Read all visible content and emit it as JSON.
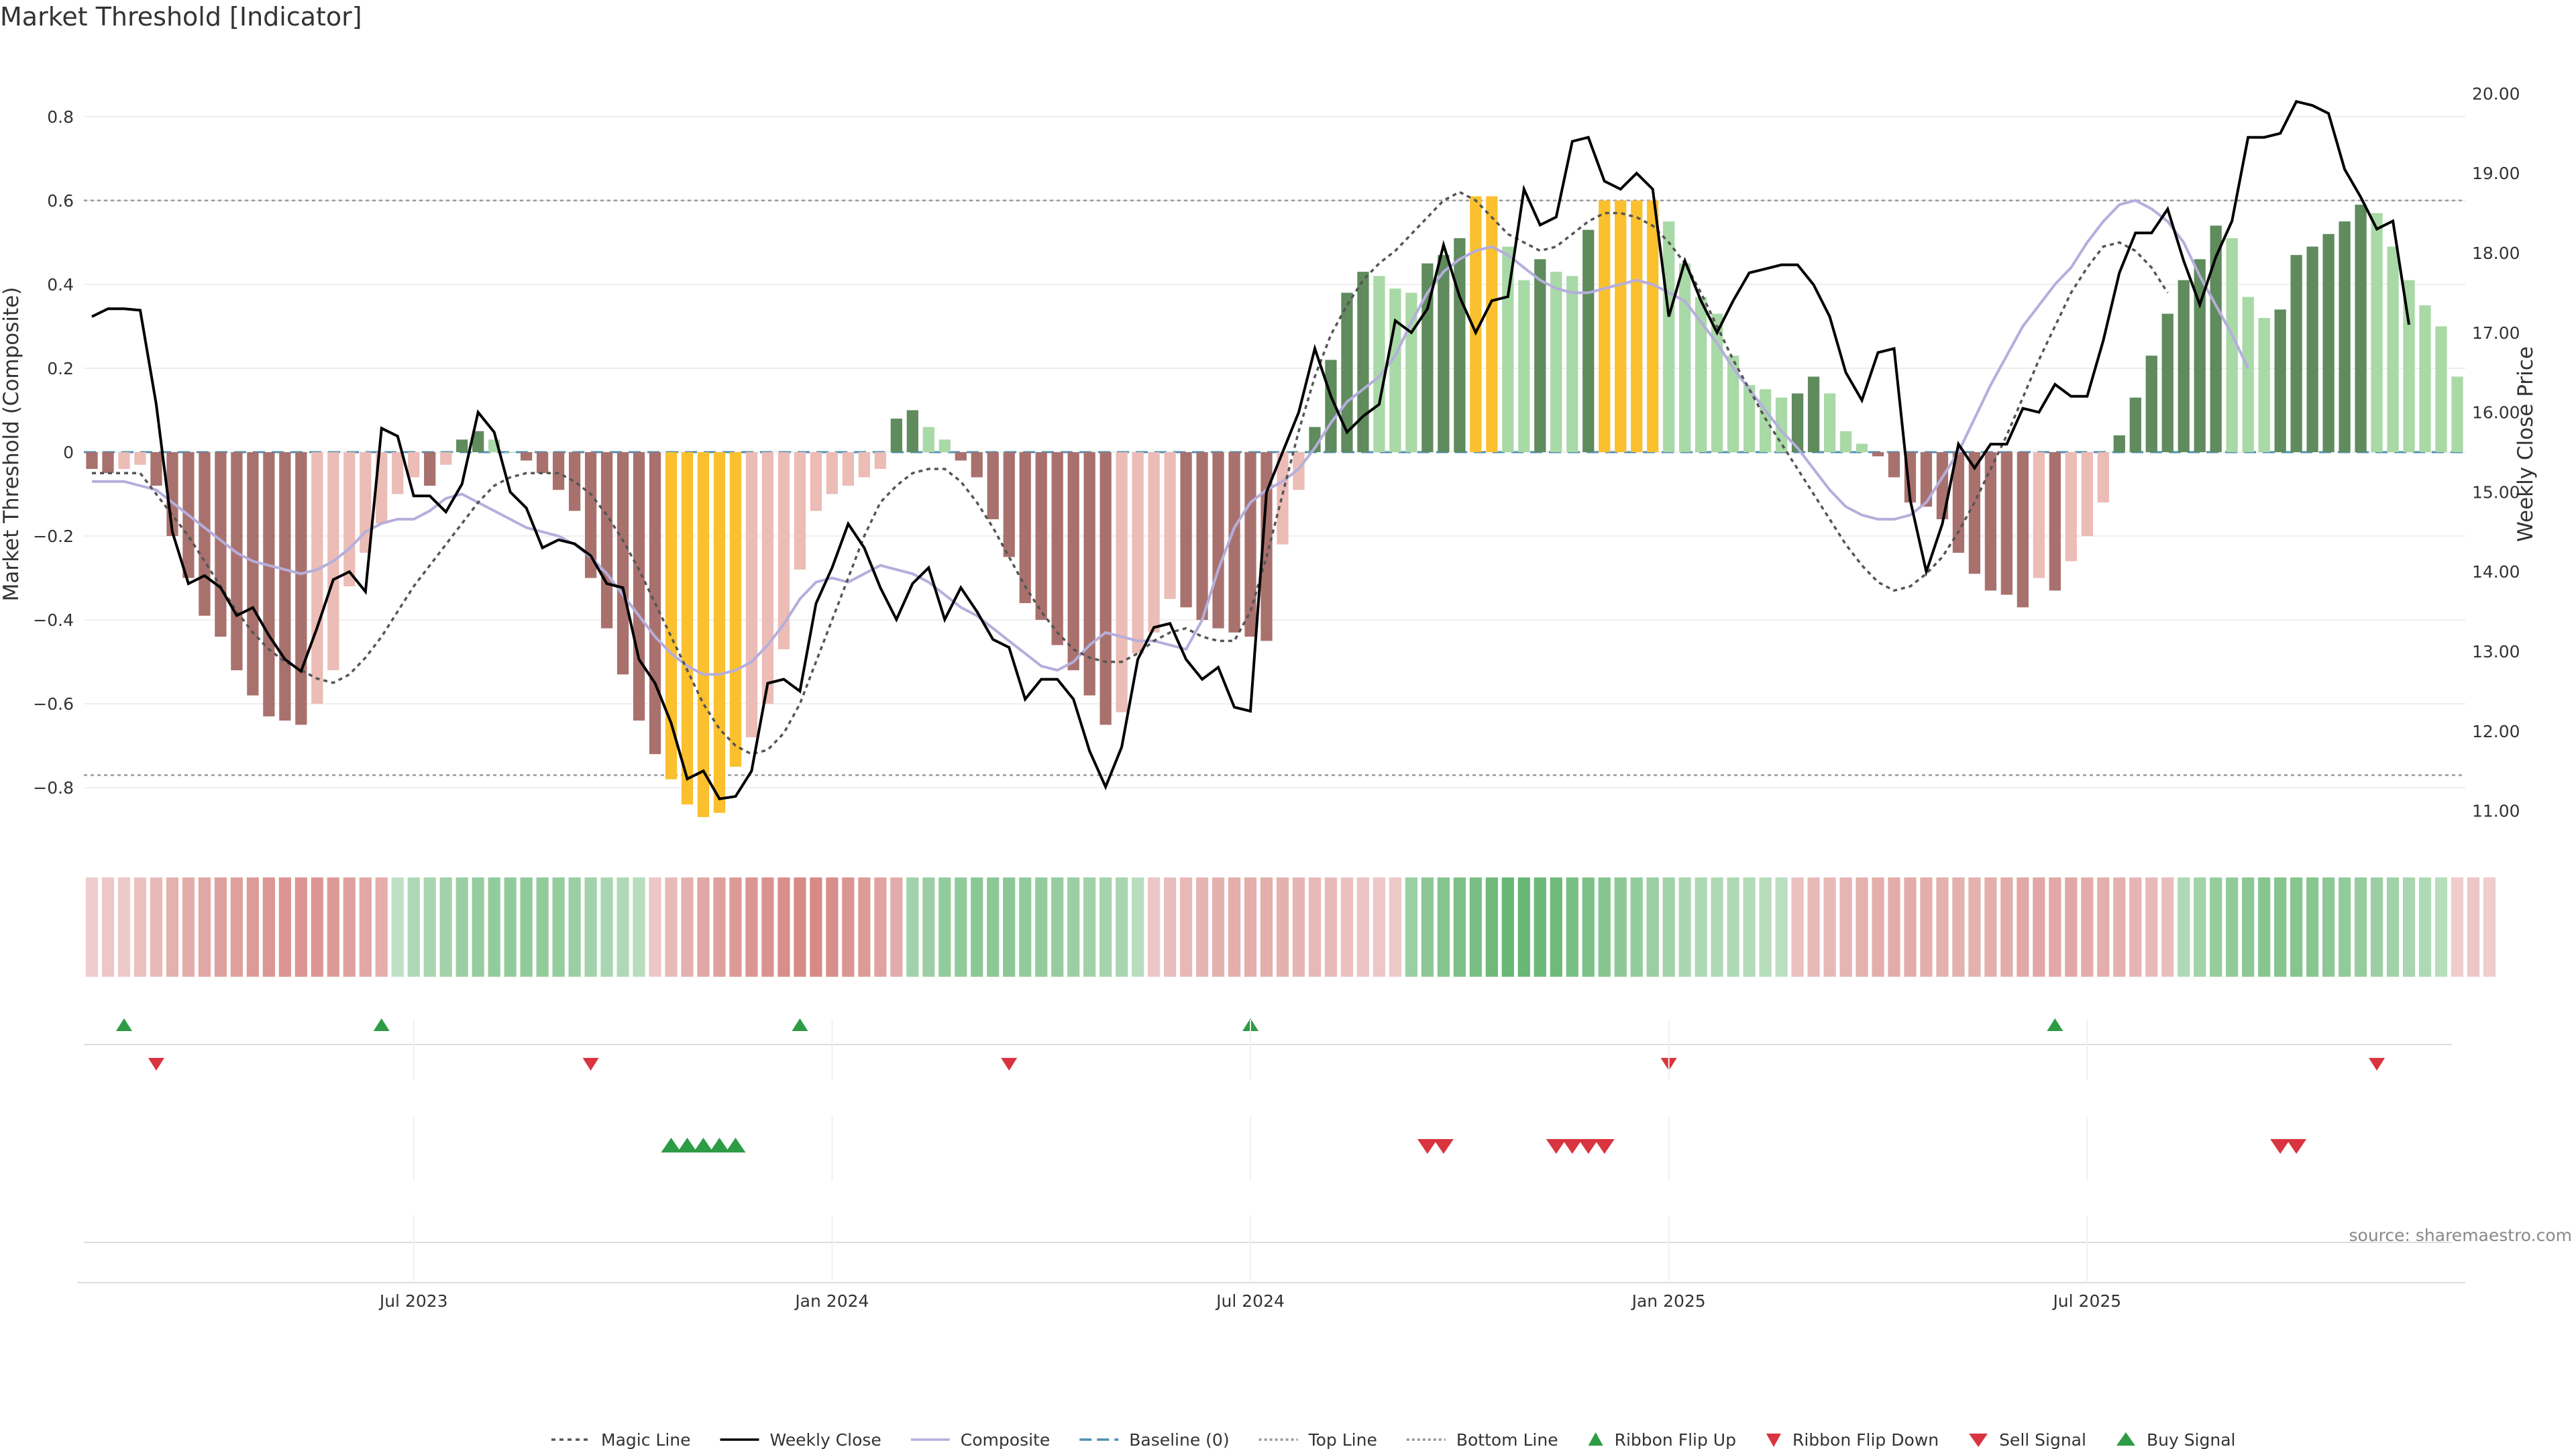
{
  "chart_data": {
    "type": "bar",
    "title": "Market Threshold [Indicator]",
    "ylabel_left": "Market Threshold (Composite)",
    "ylabel_right": "Weekly Close Price",
    "source": "source: sharemaestro.com",
    "ylim_left": [
      -0.95,
      0.95
    ],
    "ylim_right": [
      10.5,
      20.5
    ],
    "yticks_left": [
      -0.8,
      -0.6,
      -0.4,
      -0.2,
      0,
      0.2,
      0.4,
      0.6,
      0.8
    ],
    "yticks_left_labels": [
      "−0.8",
      "−0.6",
      "−0.4",
      "−0.2",
      "0",
      "0.2",
      "0.4",
      "0.6",
      "0.8"
    ],
    "yticks_right": [
      11,
      12,
      13,
      14,
      15,
      16,
      17,
      18,
      19,
      20
    ],
    "yticks_right_labels": [
      "11.00",
      "12.00",
      "13.00",
      "14.00",
      "15.00",
      "16.00",
      "17.00",
      "18.00",
      "19.00",
      "20.00"
    ],
    "xticks": [
      20,
      46,
      72,
      98,
      124
    ],
    "xtick_labels": [
      "Jul 2023",
      "Jan 2024",
      "Jul 2024",
      "Jan 2025",
      "Jul 2025"
    ],
    "top_line": 0.6,
    "bottom_line": -0.77,
    "composite_bars": [
      -0.04,
      -0.05,
      -0.04,
      -0.03,
      -0.08,
      -0.2,
      -0.3,
      -0.39,
      -0.44,
      -0.52,
      -0.58,
      -0.63,
      -0.64,
      -0.65,
      -0.6,
      -0.52,
      -0.32,
      -0.24,
      -0.17,
      -0.1,
      -0.06,
      -0.08,
      -0.03,
      0.03,
      0.05,
      0.03,
      0.0,
      -0.02,
      -0.05,
      -0.09,
      -0.14,
      -0.3,
      -0.42,
      -0.53,
      -0.64,
      -0.72,
      -0.78,
      -0.84,
      -0.87,
      -0.86,
      -0.75,
      -0.68,
      -0.6,
      -0.47,
      -0.28,
      -0.14,
      -0.1,
      -0.08,
      -0.06,
      -0.04,
      0.08,
      0.1,
      0.06,
      0.03,
      -0.02,
      -0.06,
      -0.16,
      -0.25,
      -0.36,
      -0.4,
      -0.46,
      -0.52,
      -0.58,
      -0.65,
      -0.62,
      -0.48,
      -0.43,
      -0.35,
      -0.37,
      -0.4,
      -0.42,
      -0.43,
      -0.44,
      -0.45,
      -0.22,
      -0.09,
      0.06,
      0.22,
      0.38,
      0.43,
      0.42,
      0.39,
      0.38,
      0.45,
      0.47,
      0.51,
      0.61,
      0.61,
      0.49,
      0.41,
      0.46,
      0.43,
      0.42,
      0.53,
      0.6,
      0.6,
      0.6,
      0.6,
      0.55,
      0.45,
      0.37,
      0.33,
      0.23,
      0.16,
      0.15,
      0.13,
      0.14,
      0.18,
      0.14,
      0.05,
      0.02,
      -0.01,
      -0.06,
      -0.12,
      -0.13,
      -0.16,
      -0.24,
      -0.29,
      -0.33,
      -0.34,
      -0.37,
      -0.3,
      -0.33,
      -0.26,
      -0.2,
      -0.12,
      0.04,
      0.13,
      0.23,
      0.33,
      0.41,
      0.46,
      0.54,
      0.51,
      0.37,
      0.32,
      0.34,
      0.47,
      0.49,
      0.52,
      0.55,
      0.59,
      0.57,
      0.49,
      0.41,
      0.35,
      0.3,
      0.18
    ],
    "composite_line": [
      -0.07,
      -0.07,
      -0.07,
      -0.08,
      -0.09,
      -0.12,
      -0.15,
      -0.18,
      -0.21,
      -0.24,
      -0.26,
      -0.27,
      -0.28,
      -0.29,
      -0.28,
      -0.26,
      -0.23,
      -0.19,
      -0.17,
      -0.16,
      -0.16,
      -0.14,
      -0.11,
      -0.1,
      -0.12,
      -0.14,
      -0.16,
      -0.18,
      -0.19,
      -0.2,
      -0.22,
      -0.25,
      -0.29,
      -0.34,
      -0.39,
      -0.44,
      -0.48,
      -0.51,
      -0.53,
      -0.53,
      -0.52,
      -0.5,
      -0.46,
      -0.41,
      -0.35,
      -0.31,
      -0.3,
      -0.31,
      -0.29,
      -0.27,
      -0.28,
      -0.29,
      -0.31,
      -0.34,
      -0.37,
      -0.39,
      -0.42,
      -0.45,
      -0.48,
      -0.51,
      -0.52,
      -0.5,
      -0.46,
      -0.43,
      -0.44,
      -0.45,
      -0.45,
      -0.46,
      -0.47,
      -0.4,
      -0.28,
      -0.18,
      -0.12,
      -0.09,
      -0.07,
      -0.04,
      0.01,
      0.07,
      0.12,
      0.15,
      0.18,
      0.23,
      0.31,
      0.38,
      0.43,
      0.46,
      0.48,
      0.49,
      0.47,
      0.44,
      0.41,
      0.39,
      0.38,
      0.38,
      0.39,
      0.4,
      0.41,
      0.4,
      0.38,
      0.36,
      0.31,
      0.26,
      0.2,
      0.15,
      0.1,
      0.05,
      0.01,
      -0.04,
      -0.09,
      -0.13,
      -0.15,
      -0.16,
      -0.16,
      -0.15,
      -0.12,
      -0.06,
      0.0,
      0.08,
      0.16,
      0.23,
      0.3,
      0.35,
      0.4,
      0.44,
      0.5,
      0.55,
      0.59,
      0.6,
      0.58,
      0.55,
      0.5,
      0.42,
      0.35,
      0.28,
      0.2
    ],
    "magic_line": [
      -0.05,
      -0.05,
      -0.05,
      -0.05,
      -0.1,
      -0.15,
      -0.2,
      -0.26,
      -0.32,
      -0.38,
      -0.43,
      -0.47,
      -0.5,
      -0.52,
      -0.54,
      -0.55,
      -0.53,
      -0.49,
      -0.44,
      -0.38,
      -0.32,
      -0.27,
      -0.22,
      -0.17,
      -0.12,
      -0.08,
      -0.06,
      -0.05,
      -0.05,
      -0.05,
      -0.07,
      -0.1,
      -0.15,
      -0.21,
      -0.28,
      -0.36,
      -0.44,
      -0.52,
      -0.6,
      -0.66,
      -0.7,
      -0.72,
      -0.71,
      -0.67,
      -0.6,
      -0.5,
      -0.4,
      -0.3,
      -0.2,
      -0.12,
      -0.08,
      -0.05,
      -0.04,
      -0.04,
      -0.07,
      -0.12,
      -0.18,
      -0.25,
      -0.32,
      -0.38,
      -0.43,
      -0.47,
      -0.49,
      -0.5,
      -0.5,
      -0.48,
      -0.45,
      -0.43,
      -0.42,
      -0.44,
      -0.45,
      -0.45,
      -0.38,
      -0.25,
      -0.1,
      0.05,
      0.18,
      0.28,
      0.35,
      0.41,
      0.45,
      0.48,
      0.52,
      0.56,
      0.6,
      0.62,
      0.6,
      0.56,
      0.52,
      0.5,
      0.48,
      0.49,
      0.52,
      0.55,
      0.57,
      0.57,
      0.56,
      0.54,
      0.5,
      0.45,
      0.38,
      0.3,
      0.22,
      0.15,
      0.08,
      0.02,
      -0.04,
      -0.1,
      -0.16,
      -0.22,
      -0.27,
      -0.31,
      -0.33,
      -0.32,
      -0.29,
      -0.25,
      -0.19,
      -0.12,
      -0.04,
      0.04,
      0.13,
      0.22,
      0.3,
      0.38,
      0.44,
      0.49,
      0.5,
      0.48,
      0.44,
      0.38
    ],
    "weekly_close": [
      17.2,
      17.3,
      17.3,
      17.28,
      16.1,
      14.5,
      13.85,
      13.95,
      13.8,
      13.45,
      13.55,
      13.2,
      12.9,
      12.75,
      13.3,
      13.9,
      14.0,
      13.75,
      15.8,
      15.7,
      14.95,
      14.95,
      14.75,
      15.1,
      16.0,
      15.75,
      15.0,
      14.8,
      14.3,
      14.4,
      14.35,
      14.2,
      13.85,
      13.8,
      12.9,
      12.6,
      12.1,
      11.4,
      11.5,
      11.15,
      11.18,
      11.5,
      12.6,
      12.65,
      12.5,
      13.6,
      14.05,
      14.6,
      14.3,
      13.8,
      13.4,
      13.85,
      14.05,
      13.4,
      13.8,
      13.5,
      13.15,
      13.05,
      12.4,
      12.65,
      12.65,
      12.4,
      11.75,
      11.3,
      11.8,
      12.9,
      13.3,
      13.35,
      12.9,
      12.65,
      12.8,
      12.3,
      12.25,
      15.0,
      15.5,
      16.0,
      16.8,
      16.2,
      15.75,
      15.95,
      16.1,
      17.15,
      17.0,
      17.3,
      18.1,
      17.45,
      17.0,
      17.4,
      17.45,
      18.8,
      18.35,
      18.45,
      19.4,
      19.45,
      18.9,
      18.8,
      19.0,
      18.8,
      17.2,
      17.9,
      17.4,
      17.0,
      17.4,
      17.75,
      17.8,
      17.85,
      17.85,
      17.6,
      17.2,
      16.5,
      16.15,
      16.75,
      16.8,
      14.9,
      14.0,
      14.6,
      15.6,
      15.3,
      15.6,
      15.6,
      16.05,
      16.0,
      16.35,
      16.2,
      16.2,
      16.9,
      17.75,
      18.25,
      18.25,
      18.55,
      17.9,
      17.35,
      17.95,
      18.4,
      19.45,
      19.45,
      19.5,
      19.9,
      19.85,
      19.75,
      19.05,
      18.7,
      18.3,
      18.4,
      17.1
    ],
    "ribbon_values": [
      -0.15,
      -0.2,
      -0.18,
      -0.25,
      -0.3,
      -0.38,
      -0.42,
      -0.45,
      -0.5,
      -0.52,
      -0.55,
      -0.58,
      -0.6,
      -0.6,
      -0.58,
      -0.55,
      -0.5,
      -0.45,
      -0.4,
      0.2,
      0.3,
      0.35,
      0.4,
      0.45,
      0.48,
      0.5,
      0.52,
      0.52,
      0.5,
      0.48,
      0.45,
      0.4,
      0.35,
      0.3,
      0.25,
      -0.2,
      -0.3,
      -0.38,
      -0.45,
      -0.5,
      -0.55,
      -0.6,
      -0.62,
      -0.65,
      -0.68,
      -0.7,
      -0.65,
      -0.6,
      -0.55,
      -0.48,
      -0.42,
      0.4,
      0.45,
      0.5,
      0.52,
      0.55,
      0.55,
      0.55,
      0.52,
      0.5,
      0.48,
      0.45,
      0.42,
      0.38,
      0.35,
      0.25,
      -0.2,
      -0.28,
      -0.32,
      -0.35,
      -0.38,
      -0.4,
      -0.4,
      -0.4,
      -0.38,
      -0.35,
      -0.32,
      -0.3,
      -0.25,
      -0.22,
      -0.2,
      -0.18,
      0.45,
      0.55,
      0.6,
      0.65,
      0.7,
      0.75,
      0.8,
      0.8,
      0.78,
      0.75,
      0.7,
      0.65,
      0.6,
      0.55,
      0.5,
      0.45,
      0.4,
      0.35,
      0.32,
      0.3,
      0.3,
      0.28,
      0.25,
      0.22,
      -0.25,
      -0.3,
      -0.32,
      -0.35,
      -0.38,
      -0.4,
      -0.42,
      -0.42,
      -0.4,
      -0.38,
      -0.38,
      -0.38,
      -0.4,
      -0.42,
      -0.45,
      -0.45,
      -0.45,
      -0.45,
      -0.42,
      -0.4,
      -0.38,
      -0.35,
      -0.3,
      -0.28,
      0.3,
      0.4,
      0.48,
      0.52,
      0.55,
      0.58,
      0.6,
      0.6,
      0.58,
      0.55,
      0.52,
      0.48,
      0.45,
      0.4,
      0.35,
      0.3,
      0.25,
      -0.15,
      -0.2,
      -0.15
    ],
    "ribbon_flip_up_weeks": [
      2,
      18,
      44,
      72,
      122
    ],
    "ribbon_flip_down_weeks": [
      4,
      31,
      57,
      98,
      142
    ],
    "buy_signal_weeks": [
      36,
      37,
      38,
      39,
      40
    ],
    "sell_signal_weeks": [
      83,
      84,
      91,
      92,
      93,
      94,
      136,
      137
    ],
    "legend": [
      "Magic Line",
      "Weekly Close",
      "Composite",
      "Baseline (0)",
      "Top Line",
      "Bottom Line",
      "Ribbon Flip Up",
      "Ribbon Flip Down",
      "Sell Signal",
      "Buy Signal"
    ],
    "colors": {
      "strong_neg": "#a9716d",
      "weak_neg": "#ecbcb6",
      "strong_pos": "#5f8b5d",
      "weak_pos": "#a9d9a6",
      "extreme": "#fbc02d",
      "composite": "#b5aedc",
      "magic": "#555555",
      "close": "#000000",
      "baseline": "#4f8fb1",
      "buy": "#2e9b45",
      "sell": "#d9343f"
    }
  }
}
